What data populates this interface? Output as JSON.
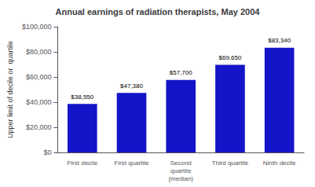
{
  "chart_data": {
    "type": "bar",
    "title": "Annual earnings of radiation therapists, May 2004",
    "ylabel": "Upper limit of decile or  quartile",
    "categories": [
      "First decile",
      "First quartile",
      "Second\nquartile\n(median)",
      "Third quartile",
      "Ninth decile"
    ],
    "values": [
      38550,
      47380,
      57700,
      69650,
      83340
    ],
    "value_labels": [
      "$38,550",
      "$47,380",
      "$57,700",
      "$69,650",
      "$83,340"
    ],
    "data_labels": true,
    "color": "#1414c8",
    "ylim": [
      0,
      100000
    ],
    "yticks": [
      {
        "value": 0,
        "label": "$0"
      },
      {
        "value": 20000,
        "label": "$20,000"
      },
      {
        "value": 40000,
        "label": "$40,000"
      },
      {
        "value": 60000,
        "label": "$60,000"
      },
      {
        "value": 80000,
        "label": "$80,000"
      },
      {
        "value": 100000,
        "label": "$100,000"
      }
    ],
    "grid": false
  }
}
